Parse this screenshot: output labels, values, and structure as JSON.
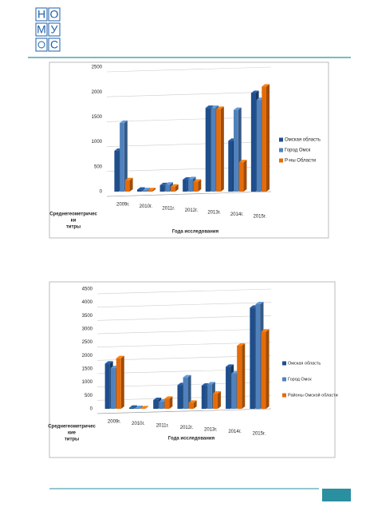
{
  "logo": {
    "letters": [
      "Н",
      "О",
      "М",
      "У",
      "С"
    ]
  },
  "chart_data": [
    {
      "type": "bar",
      "categories": [
        "2009г.",
        "2010г.",
        "2011г.",
        "2012г.",
        "2013г.",
        "2014г.",
        "2015г."
      ],
      "series": [
        {
          "name": "Омская область",
          "color": "#1f4e8c",
          "values": [
            820,
            40,
            130,
            240,
            1680,
            1020,
            1980
          ]
        },
        {
          "name": "Город Омск",
          "color": "#4f81bd",
          "values": [
            1380,
            30,
            140,
            250,
            1680,
            1640,
            1840
          ]
        },
        {
          "name": "Р-ны Области",
          "color": "#e46c0a",
          "values": [
            230,
            30,
            100,
            200,
            1660,
            590,
            2110
          ]
        }
      ],
      "ylim": [
        0,
        2500
      ],
      "yticks": [
        0,
        500,
        1000,
        1500,
        2000,
        2500
      ],
      "grid": true,
      "y_label": [
        "Среднегеометричес",
        "ки",
        "титры"
      ],
      "x_label": "Года исследования",
      "legend_position": "right"
    },
    {
      "type": "bar",
      "categories": [
        "2009г.",
        "2010г.",
        "2011г.",
        "2012г.",
        "2013г.",
        "2014г.",
        "2015г."
      ],
      "series": [
        {
          "name": "Омская область",
          "color": "#1f4e8c",
          "values": [
            1700,
            40,
            330,
            890,
            870,
            1580,
            3800
          ]
        },
        {
          "name": "Город Омск",
          "color": "#4f81bd",
          "values": [
            1530,
            30,
            270,
            1180,
            920,
            1330,
            3930
          ]
        },
        {
          "name": "Районы Омской области",
          "color": "#e46c0a",
          "values": [
            1900,
            20,
            380,
            230,
            570,
            2370,
            2900
          ]
        }
      ],
      "ylim": [
        0,
        4500
      ],
      "yticks": [
        0,
        500,
        1000,
        1500,
        2000,
        2500,
        3000,
        3500,
        4000,
        4500
      ],
      "grid": true,
      "y_label": [
        "Среднегеометричес",
        "кие",
        "титры"
      ],
      "x_label": "Года исследования",
      "legend_position": "right"
    }
  ]
}
